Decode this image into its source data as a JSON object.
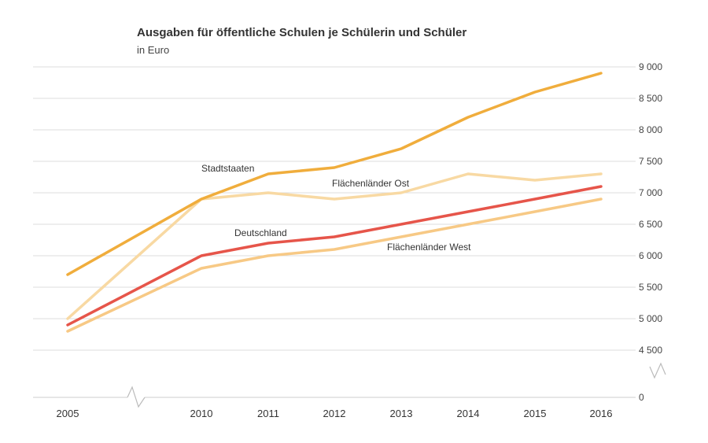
{
  "chart_data": {
    "type": "line",
    "title": "Ausgaben für öffentliche Schulen je Schülerin und Schüler",
    "subtitle": "in Euro",
    "x": [
      "2005",
      "2010",
      "2011",
      "2012",
      "2013",
      "2014",
      "2015",
      "2016"
    ],
    "y_ticks": [
      "9 000",
      "8 500",
      "8 000",
      "7 500",
      "7 000",
      "6 500",
      "6 000",
      "5 500",
      "5 000",
      "4 500",
      "0"
    ],
    "ylim": [
      4500,
      9000
    ],
    "axis_break": true,
    "grid": true,
    "series": [
      {
        "name": "Stadtstaaten",
        "color": "#f0ad3c",
        "values": [
          5700,
          6900,
          7300,
          7400,
          7700,
          8200,
          8600,
          8900
        ]
      },
      {
        "name": "Flächenländer Ost",
        "color": "#f8d9a3",
        "values": [
          5000,
          6900,
          7000,
          6900,
          7000,
          7300,
          7200,
          7300
        ]
      },
      {
        "name": "Deutschland",
        "color": "#e6554a",
        "values": [
          4900,
          6000,
          6200,
          6300,
          6500,
          6700,
          6900,
          7100
        ]
      },
      {
        "name": "Flächenländer West",
        "color": "#f7c985",
        "values": [
          4800,
          5800,
          6000,
          6100,
          6300,
          6500,
          6700,
          6900
        ]
      }
    ]
  }
}
